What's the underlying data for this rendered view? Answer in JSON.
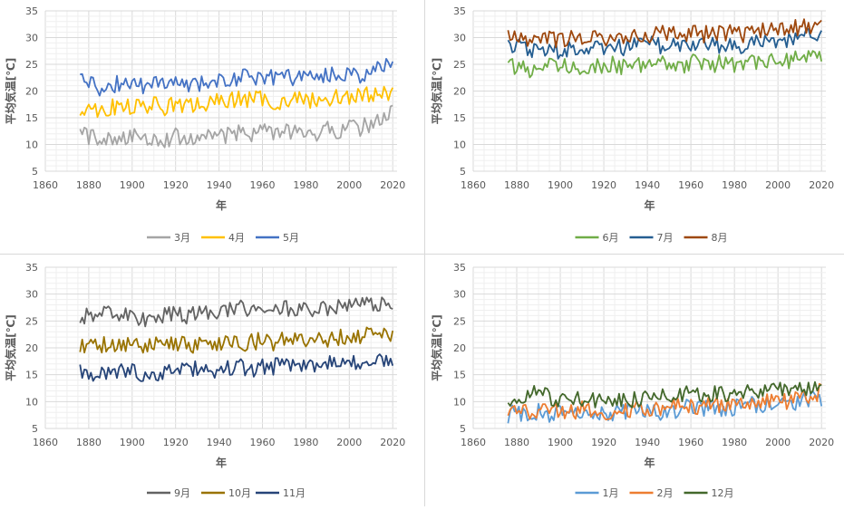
{
  "chart_data": [
    {
      "type": "line",
      "xlabel": "年",
      "ylabel": "平均気温[℃]",
      "xlim": [
        1860,
        2020
      ],
      "ylim": [
        5,
        35
      ],
      "xticks": [
        1860,
        1880,
        1900,
        1920,
        1940,
        1960,
        1980,
        2000,
        2020
      ],
      "yticks": [
        5,
        10,
        15,
        20,
        25,
        30,
        35
      ],
      "grid": true,
      "legend": "bottom",
      "series": [
        {
          "name": "3月",
          "color": "#a5a5a5",
          "x": [
            1876,
            1880,
            1885,
            1890,
            1895,
            1900,
            1905,
            1910,
            1915,
            1920,
            1925,
            1930,
            1935,
            1940,
            1945,
            1950,
            1955,
            1960,
            1965,
            1970,
            1975,
            1980,
            1985,
            1990,
            1995,
            2000,
            2005,
            2010,
            2015,
            2020
          ],
          "values": [
            12,
            11.5,
            11,
            11.5,
            11,
            11.5,
            11,
            11.5,
            11,
            11.5,
            11,
            11.5,
            11.5,
            12,
            11.5,
            12.5,
            12,
            13,
            12,
            12.5,
            12,
            12.5,
            12,
            13,
            12.5,
            13.5,
            13,
            14,
            14.5,
            16
          ]
        },
        {
          "name": "4月",
          "color": "#ffc000",
          "x": [
            1876,
            1880,
            1885,
            1890,
            1895,
            1900,
            1905,
            1910,
            1915,
            1920,
            1925,
            1930,
            1935,
            1940,
            1945,
            1950,
            1955,
            1960,
            1965,
            1970,
            1975,
            1980,
            1985,
            1990,
            1995,
            2000,
            2005,
            2010,
            2015,
            2020
          ],
          "values": [
            17,
            17,
            16.5,
            17,
            17,
            17,
            17,
            17.5,
            17,
            17.5,
            17,
            17.5,
            17.5,
            18,
            18.5,
            18.5,
            18.5,
            18.5,
            18,
            18,
            18.5,
            18.5,
            18,
            18.5,
            19,
            19,
            19,
            19.5,
            19.5,
            20
          ]
        },
        {
          "name": "5月",
          "color": "#4472c4",
          "x": [
            1876,
            1880,
            1885,
            1890,
            1895,
            1900,
            1905,
            1910,
            1915,
            1920,
            1925,
            1930,
            1935,
            1940,
            1945,
            1950,
            1955,
            1960,
            1965,
            1970,
            1975,
            1980,
            1985,
            1990,
            1995,
            2000,
            2005,
            2010,
            2015,
            2020
          ],
          "values": [
            22,
            22,
            20.5,
            21,
            21.5,
            21.5,
            21,
            21.5,
            21.5,
            21.5,
            21.5,
            21.5,
            21.5,
            22,
            22,
            22.5,
            22.5,
            23,
            22.5,
            23,
            22.5,
            23,
            22.5,
            23,
            23,
            23.5,
            23,
            23.5,
            25,
            24
          ]
        }
      ]
    },
    {
      "type": "line",
      "xlabel": "年",
      "ylabel": "平均気温[℃]",
      "xlim": [
        1860,
        2020
      ],
      "ylim": [
        5,
        35
      ],
      "xticks": [
        1860,
        1880,
        1900,
        1920,
        1940,
        1960,
        1980,
        2000,
        2020
      ],
      "yticks": [
        5,
        10,
        15,
        20,
        25,
        30,
        35
      ],
      "grid": true,
      "legend": "bottom",
      "series": [
        {
          "name": "6月",
          "color": "#70ad47",
          "x": [
            1876,
            1880,
            1885,
            1890,
            1895,
            1900,
            1905,
            1910,
            1915,
            1920,
            1925,
            1930,
            1935,
            1940,
            1945,
            1950,
            1955,
            1960,
            1965,
            1970,
            1975,
            1980,
            1985,
            1990,
            1995,
            2000,
            2005,
            2010,
            2015,
            2020
          ],
          "values": [
            25,
            24.5,
            24,
            24.5,
            24.5,
            24.5,
            24.5,
            24.5,
            25,
            24.5,
            25,
            24.5,
            25,
            25,
            25,
            25,
            24.5,
            25.5,
            25,
            25,
            25.5,
            25,
            25,
            25.5,
            25.5,
            26,
            25.5,
            26.5,
            26.5,
            27
          ]
        },
        {
          "name": "7月",
          "color": "#255e91",
          "x": [
            1876,
            1880,
            1885,
            1890,
            1895,
            1900,
            1905,
            1910,
            1915,
            1920,
            1925,
            1930,
            1935,
            1940,
            1945,
            1950,
            1955,
            1960,
            1965,
            1970,
            1975,
            1980,
            1985,
            1990,
            1995,
            2000,
            2005,
            2010,
            2015,
            2020
          ],
          "values": [
            29,
            28.5,
            28,
            27.5,
            28,
            27.5,
            28,
            28,
            28.5,
            28,
            28.5,
            28,
            28.5,
            29,
            28.5,
            29,
            28.5,
            29,
            28.5,
            29,
            28.5,
            28.5,
            28.5,
            29,
            29.5,
            29.5,
            29.5,
            30,
            30.5,
            30
          ]
        },
        {
          "name": "8月",
          "color": "#9e480e",
          "x": [
            1876,
            1880,
            1885,
            1890,
            1895,
            1900,
            1905,
            1910,
            1915,
            1920,
            1925,
            1930,
            1935,
            1940,
            1945,
            1950,
            1955,
            1960,
            1965,
            1970,
            1975,
            1980,
            1985,
            1990,
            1995,
            2000,
            2005,
            2010,
            2015,
            2020
          ],
          "values": [
            30.5,
            30,
            29.5,
            29.5,
            30,
            29.5,
            30,
            30,
            30,
            30,
            30,
            30,
            30,
            30.5,
            30.5,
            31,
            30.5,
            31,
            30.5,
            31,
            30.5,
            31,
            30.5,
            31,
            31.5,
            32,
            31.5,
            32,
            32,
            33
          ]
        }
      ]
    },
    {
      "type": "line",
      "xlabel": "年",
      "ylabel": "平均気温[℃]",
      "xlim": [
        1860,
        2020
      ],
      "ylim": [
        5,
        35
      ],
      "xticks": [
        1860,
        1880,
        1900,
        1920,
        1940,
        1960,
        1980,
        2000,
        2020
      ],
      "yticks": [
        5,
        10,
        15,
        20,
        25,
        30,
        35
      ],
      "grid": true,
      "legend": "bottom",
      "series": [
        {
          "name": "9月",
          "color": "#636363",
          "x": [
            1876,
            1880,
            1885,
            1890,
            1895,
            1900,
            1905,
            1910,
            1915,
            1920,
            1925,
            1930,
            1935,
            1940,
            1945,
            1950,
            1955,
            1960,
            1965,
            1970,
            1975,
            1980,
            1985,
            1990,
            1995,
            2000,
            2005,
            2010,
            2015,
            2020
          ],
          "values": [
            26,
            26,
            26,
            26.5,
            26,
            25.5,
            25,
            25.5,
            26,
            26.5,
            26,
            26.5,
            26.5,
            27,
            27,
            27.5,
            27,
            28,
            27,
            27.5,
            27.5,
            27.5,
            27,
            27.5,
            27.5,
            28,
            28,
            28.5,
            28,
            28.5
          ]
        },
        {
          "name": "10月",
          "color": "#997300",
          "x": [
            1876,
            1880,
            1885,
            1890,
            1895,
            1900,
            1905,
            1910,
            1915,
            1920,
            1925,
            1930,
            1935,
            1940,
            1945,
            1950,
            1955,
            1960,
            1965,
            1970,
            1975,
            1980,
            1985,
            1990,
            1995,
            2000,
            2005,
            2010,
            2015,
            2020
          ],
          "values": [
            20.5,
            20.5,
            20.5,
            21,
            20.5,
            20.5,
            20,
            20.5,
            20.5,
            20.5,
            20.5,
            20.5,
            21,
            21,
            21,
            21,
            21,
            21.5,
            21,
            21.5,
            21.5,
            21.5,
            21.5,
            21.5,
            22,
            22.5,
            22,
            22.5,
            22.5,
            22
          ]
        },
        {
          "name": "11月",
          "color": "#264478",
          "x": [
            1876,
            1880,
            1885,
            1890,
            1895,
            1900,
            1905,
            1910,
            1915,
            1920,
            1925,
            1930,
            1935,
            1940,
            1945,
            1950,
            1955,
            1960,
            1965,
            1970,
            1975,
            1980,
            1985,
            1990,
            1995,
            2000,
            2005,
            2010,
            2015,
            2020
          ],
          "values": [
            15.5,
            15,
            15,
            16,
            15.5,
            15.5,
            15,
            15.5,
            15.5,
            16,
            16,
            16,
            16,
            16,
            16,
            16.5,
            16,
            16.5,
            16.5,
            16.5,
            16.5,
            16.5,
            16,
            17,
            17,
            17.5,
            17,
            17.5,
            17.5,
            18
          ]
        }
      ]
    },
    {
      "type": "line",
      "xlabel": "年",
      "ylabel": "平均気温[℃]",
      "xlim": [
        1860,
        2020
      ],
      "ylim": [
        5,
        35
      ],
      "xticks": [
        1860,
        1880,
        1900,
        1920,
        1940,
        1960,
        1980,
        2000,
        2020
      ],
      "yticks": [
        5,
        10,
        15,
        20,
        25,
        30,
        35
      ],
      "grid": true,
      "legend": "bottom",
      "series": [
        {
          "name": "1月",
          "color": "#5b9bd5",
          "x": [
            1876,
            1880,
            1885,
            1890,
            1895,
            1900,
            1905,
            1910,
            1915,
            1920,
            1925,
            1930,
            1935,
            1940,
            1945,
            1950,
            1955,
            1960,
            1965,
            1970,
            1975,
            1980,
            1985,
            1990,
            1995,
            2000,
            2005,
            2010,
            2015,
            2020
          ],
          "values": [
            7.5,
            8,
            7.5,
            8,
            7.5,
            8,
            7.5,
            8,
            8,
            7.5,
            8,
            8,
            8,
            8.5,
            8,
            8.5,
            8.5,
            9,
            8.5,
            9,
            8.5,
            9,
            9,
            9.5,
            9.5,
            10,
            9.5,
            10,
            10.5,
            10.5
          ]
        },
        {
          "name": "2月",
          "color": "#ed7d31",
          "x": [
            1876,
            1880,
            1885,
            1890,
            1895,
            1900,
            1905,
            1910,
            1915,
            1920,
            1925,
            1930,
            1935,
            1940,
            1945,
            1950,
            1955,
            1960,
            1965,
            1970,
            1975,
            1980,
            1985,
            1990,
            1995,
            2000,
            2005,
            2010,
            2015,
            2020
          ],
          "values": [
            8,
            8.5,
            8,
            8.5,
            8,
            8.5,
            8,
            8.5,
            8.5,
            8,
            8.5,
            8.5,
            8.5,
            9,
            8.5,
            9,
            9,
            9.5,
            9,
            9.5,
            9,
            9.5,
            9.5,
            10,
            10,
            10.5,
            10,
            10.5,
            11,
            12
          ]
        },
        {
          "name": "12月",
          "color": "#43682b",
          "x": [
            1876,
            1880,
            1885,
            1890,
            1895,
            1900,
            1905,
            1910,
            1915,
            1920,
            1925,
            1930,
            1935,
            1940,
            1945,
            1950,
            1955,
            1960,
            1965,
            1970,
            1975,
            1980,
            1985,
            1990,
            1995,
            2000,
            2005,
            2010,
            2015,
            2020
          ],
          "values": [
            10.5,
            11,
            10.5,
            12,
            10.5,
            10.5,
            10,
            10.5,
            10.5,
            10,
            10.5,
            10.5,
            10.5,
            11,
            11,
            11.5,
            11.5,
            12,
            11.5,
            11.5,
            11.5,
            12,
            11.5,
            12,
            12,
            12.5,
            12,
            12.5,
            12.5,
            13
          ]
        }
      ]
    }
  ]
}
